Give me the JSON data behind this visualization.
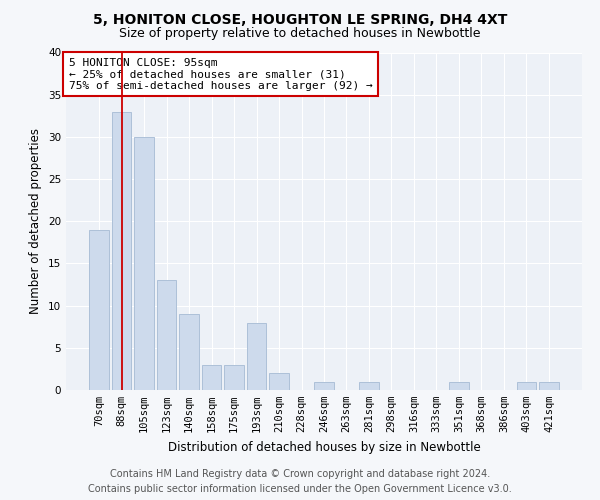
{
  "title": "5, HONITON CLOSE, HOUGHTON LE SPRING, DH4 4XT",
  "subtitle": "Size of property relative to detached houses in Newbottle",
  "xlabel": "Distribution of detached houses by size in Newbottle",
  "ylabel": "Number of detached properties",
  "categories": [
    "70sqm",
    "88sqm",
    "105sqm",
    "123sqm",
    "140sqm",
    "158sqm",
    "175sqm",
    "193sqm",
    "210sqm",
    "228sqm",
    "246sqm",
    "263sqm",
    "281sqm",
    "298sqm",
    "316sqm",
    "333sqm",
    "351sqm",
    "368sqm",
    "386sqm",
    "403sqm",
    "421sqm"
  ],
  "values": [
    19,
    33,
    30,
    13,
    9,
    3,
    3,
    8,
    2,
    0,
    1,
    0,
    1,
    0,
    0,
    0,
    1,
    0,
    0,
    1,
    1
  ],
  "bar_color": "#cddaec",
  "bar_edge_color": "#adc0d8",
  "vline_x_index": 1,
  "vline_color": "#cc0000",
  "ylim": [
    0,
    40
  ],
  "yticks": [
    0,
    5,
    10,
    15,
    20,
    25,
    30,
    35,
    40
  ],
  "annotation_line1": "5 HONITON CLOSE: 95sqm",
  "annotation_line2": "← 25% of detached houses are smaller (31)",
  "annotation_line3": "75% of semi-detached houses are larger (92) →",
  "annotation_box_color": "#cc0000",
  "footer_line1": "Contains HM Land Registry data © Crown copyright and database right 2024.",
  "footer_line2": "Contains public sector information licensed under the Open Government Licence v3.0.",
  "bg_color": "#edf1f7",
  "grid_color": "#ffffff",
  "fig_bg_color": "#f5f7fa",
  "title_fontsize": 10,
  "subtitle_fontsize": 9,
  "axis_label_fontsize": 8.5,
  "tick_fontsize": 7.5,
  "annotation_fontsize": 8,
  "footer_fontsize": 7
}
